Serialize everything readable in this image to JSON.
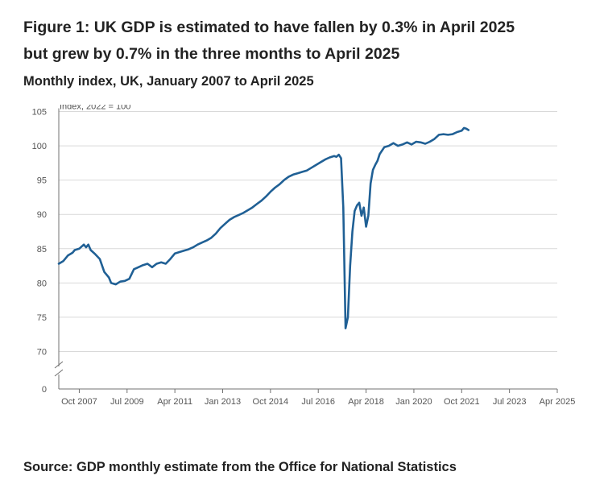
{
  "title_line1": "Figure 1: UK GDP is estimated to have fallen by 0.3% in April 2025",
  "title_line2": "but grew by 0.7% in the three months to April 2025",
  "subtitle": "Monthly index, UK, January 2007 to April 2025",
  "source": "Source: GDP monthly estimate from the Office for National Statistics",
  "colors": {
    "series": "#206095",
    "grid": "#d9d9d9",
    "axis": "#707070",
    "text": "#222222"
  },
  "chart_data": {
    "type": "line",
    "title": "Figure 1: UK GDP is estimated to have fallen by 0.3% in April 2025 but grew by 0.7% in the three months to April 2025",
    "subtitle": "Monthly index, UK, January 2007 to April 2025",
    "ylabel": "Index, 2022 = 100",
    "xlabel": "",
    "y_ticks": [
      0,
      70,
      75,
      80,
      85,
      90,
      95,
      100,
      105
    ],
    "ylim": [
      70,
      105
    ],
    "y_axis_break": true,
    "grid": true,
    "x_tick_labels": [
      "Oct 2007",
      "Jul 2009",
      "Apr 2011",
      "Jan 2013",
      "Oct 2014",
      "Jul 2016",
      "Apr 2018",
      "Jan 2020",
      "Oct 2021",
      "Jul 2023",
      "Apr 2025"
    ],
    "x_tick_index": [
      9,
      30,
      51,
      72,
      93,
      114,
      135,
      156,
      177,
      198,
      219
    ],
    "start": "Jan 2007",
    "end": "Apr 2025",
    "series": [
      {
        "name": "Monthly GDP index",
        "anchors": [
          [
            0,
            82.8
          ],
          [
            2,
            83.2
          ],
          [
            4,
            84.0
          ],
          [
            6,
            84.4
          ],
          [
            7,
            84.8
          ],
          [
            9,
            85.0
          ],
          [
            11,
            85.6
          ],
          [
            12,
            85.2
          ],
          [
            13,
            85.6
          ],
          [
            14,
            84.8
          ],
          [
            16,
            84.2
          ],
          [
            18,
            83.5
          ],
          [
            20,
            81.6
          ],
          [
            22,
            80.8
          ],
          [
            23,
            80.0
          ],
          [
            25,
            79.8
          ],
          [
            27,
            80.2
          ],
          [
            29,
            80.3
          ],
          [
            31,
            80.6
          ],
          [
            33,
            82.0
          ],
          [
            35,
            82.3
          ],
          [
            37,
            82.6
          ],
          [
            39,
            82.8
          ],
          [
            41,
            82.3
          ],
          [
            43,
            82.8
          ],
          [
            45,
            83.0
          ],
          [
            47,
            82.8
          ],
          [
            49,
            83.5
          ],
          [
            51,
            84.3
          ],
          [
            53,
            84.5
          ],
          [
            55,
            84.7
          ],
          [
            57,
            84.9
          ],
          [
            59,
            85.2
          ],
          [
            61,
            85.6
          ],
          [
            63,
            85.9
          ],
          [
            65,
            86.2
          ],
          [
            67,
            86.6
          ],
          [
            69,
            87.2
          ],
          [
            71,
            88.0
          ],
          [
            73,
            88.6
          ],
          [
            75,
            89.2
          ],
          [
            77,
            89.6
          ],
          [
            79,
            89.9
          ],
          [
            81,
            90.2
          ],
          [
            83,
            90.6
          ],
          [
            85,
            91.0
          ],
          [
            87,
            91.5
          ],
          [
            89,
            92.0
          ],
          [
            91,
            92.6
          ],
          [
            93,
            93.3
          ],
          [
            95,
            93.9
          ],
          [
            97,
            94.4
          ],
          [
            99,
            95.0
          ],
          [
            101,
            95.5
          ],
          [
            103,
            95.8
          ],
          [
            105,
            96.0
          ],
          [
            107,
            96.2
          ],
          [
            109,
            96.4
          ],
          [
            111,
            96.8
          ],
          [
            113,
            97.2
          ],
          [
            115,
            97.6
          ],
          [
            117,
            98.0
          ],
          [
            119,
            98.3
          ],
          [
            121,
            98.5
          ],
          [
            122,
            98.4
          ],
          [
            123,
            98.7
          ],
          [
            124,
            98.2
          ],
          [
            125,
            91.0
          ],
          [
            126,
            73.4
          ],
          [
            127,
            75.0
          ],
          [
            128,
            82.5
          ],
          [
            129,
            87.5
          ],
          [
            130,
            90.5
          ],
          [
            131,
            91.3
          ],
          [
            132,
            91.7
          ],
          [
            133,
            89.8
          ],
          [
            134,
            91.0
          ],
          [
            135,
            88.2
          ],
          [
            136,
            89.8
          ],
          [
            137,
            94.5
          ],
          [
            138,
            96.5
          ],
          [
            139,
            97.2
          ],
          [
            140,
            97.8
          ],
          [
            141,
            98.8
          ],
          [
            142,
            99.3
          ],
          [
            143,
            99.8
          ],
          [
            145,
            100.0
          ],
          [
            147,
            100.4
          ],
          [
            149,
            100.0
          ],
          [
            151,
            100.2
          ],
          [
            153,
            100.5
          ],
          [
            155,
            100.2
          ],
          [
            157,
            100.6
          ],
          [
            159,
            100.5
          ],
          [
            161,
            100.3
          ],
          [
            163,
            100.6
          ],
          [
            165,
            101.0
          ],
          [
            167,
            101.6
          ],
          [
            169,
            101.7
          ],
          [
            171,
            101.6
          ],
          [
            173,
            101.7
          ],
          [
            175,
            102.0
          ],
          [
            177,
            102.2
          ],
          [
            178,
            102.6
          ],
          [
            179,
            102.5
          ],
          [
            180,
            102.3
          ]
        ],
        "values_note": "anchor pairs are [months since Jan 2007, index value]"
      }
    ]
  }
}
